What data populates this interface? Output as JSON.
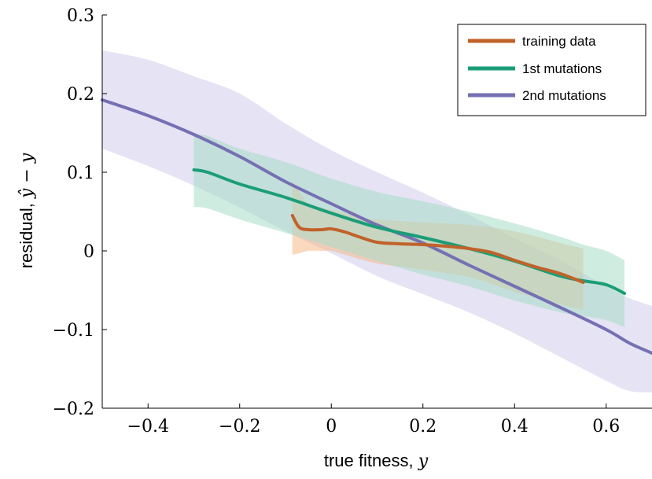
{
  "chart_data": {
    "type": "line",
    "xlabel": "true fitness, ",
    "xlabel_var": "y",
    "ylabel": "residual, ",
    "ylabel_var": "ŷ − y",
    "xlim": [
      -0.5,
      0.7
    ],
    "ylim": [
      -0.2,
      0.3
    ],
    "xticks": [
      -0.4,
      -0.2,
      0,
      0.2,
      0.4,
      0.6
    ],
    "xtick_labels": [
      "−0.4",
      "−0.2",
      "0",
      "0.2",
      "0.4",
      "0.6"
    ],
    "yticks": [
      -0.2,
      -0.1,
      0,
      0.1,
      0.2,
      0.3
    ],
    "ytick_labels": [
      "−0.2",
      "−0.1",
      "0",
      "0.1",
      "0.2",
      "0.3"
    ],
    "grid": false,
    "legend_position": "top-right",
    "series": [
      {
        "name": "training data",
        "color": "#c0622a",
        "band_color": "#f7b98a",
        "x": [
          -0.085,
          -0.07,
          -0.05,
          -0.02,
          0,
          0.03,
          0.06,
          0.1,
          0.15,
          0.2,
          0.25,
          0.3,
          0.35,
          0.4,
          0.45,
          0.5,
          0.55
        ],
        "y": [
          0.045,
          0.03,
          0.027,
          0.027,
          0.028,
          0.024,
          0.018,
          0.011,
          0.009,
          0.008,
          0.006,
          0.003,
          -0.002,
          -0.012,
          -0.021,
          -0.029,
          -0.04
        ],
        "lower": [
          -0.005,
          -0.003,
          0.0,
          0.0,
          0.0,
          -0.005,
          -0.01,
          -0.016,
          -0.02,
          -0.024,
          -0.028,
          -0.033,
          -0.042,
          -0.052,
          -0.06,
          -0.068,
          -0.075
        ],
        "upper": [
          0.09,
          0.075,
          0.06,
          0.055,
          0.052,
          0.048,
          0.043,
          0.04,
          0.038,
          0.036,
          0.035,
          0.033,
          0.03,
          0.025,
          0.018,
          0.01,
          0.003
        ]
      },
      {
        "name": "1st mutations",
        "color": "#1b9e77",
        "band_color": "#a8dcc6",
        "x": [
          -0.3,
          -0.27,
          -0.2,
          -0.1,
          0,
          0.1,
          0.2,
          0.3,
          0.4,
          0.5,
          0.55,
          0.6,
          0.64
        ],
        "y": [
          0.103,
          0.1,
          0.085,
          0.068,
          0.048,
          0.03,
          0.017,
          0.003,
          -0.013,
          -0.032,
          -0.038,
          -0.043,
          -0.054
        ],
        "lower": [
          0.056,
          0.054,
          0.04,
          0.023,
          0.005,
          -0.013,
          -0.03,
          -0.045,
          -0.063,
          -0.078,
          -0.083,
          -0.088,
          -0.097
        ],
        "upper": [
          0.148,
          0.146,
          0.13,
          0.113,
          0.092,
          0.075,
          0.063,
          0.05,
          0.035,
          0.018,
          0.008,
          0.0,
          -0.012
        ]
      },
      {
        "name": "2nd mutations",
        "color": "#7570b3",
        "band_color": "#dcdaf0",
        "x": [
          -0.5,
          -0.4,
          -0.3,
          -0.2,
          -0.1,
          0,
          0.1,
          0.2,
          0.3,
          0.4,
          0.5,
          0.6,
          0.65,
          0.7
        ],
        "y": [
          0.192,
          0.172,
          0.148,
          0.12,
          0.088,
          0.06,
          0.033,
          0.01,
          -0.018,
          -0.045,
          -0.072,
          -0.1,
          -0.117,
          -0.13
        ],
        "lower": [
          0.13,
          0.108,
          0.083,
          0.055,
          0.025,
          -0.003,
          -0.032,
          -0.055,
          -0.078,
          -0.105,
          -0.135,
          -0.165,
          -0.178,
          -0.18
        ],
        "upper": [
          0.255,
          0.243,
          0.222,
          0.2,
          0.162,
          0.128,
          0.1,
          0.074,
          0.046,
          0.016,
          -0.012,
          -0.045,
          -0.06,
          -0.07
        ]
      }
    ]
  }
}
